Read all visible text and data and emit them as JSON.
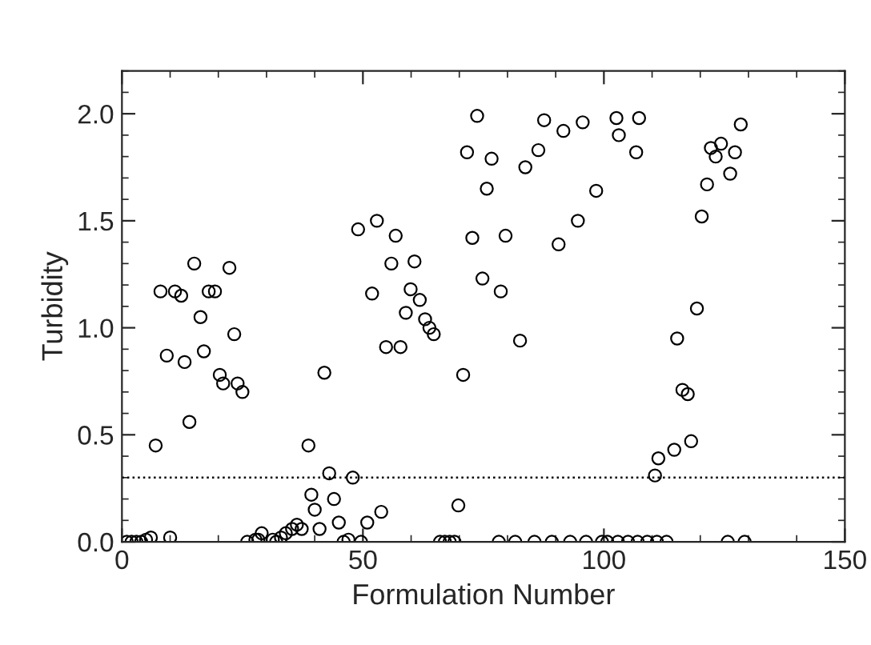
{
  "chart_data": {
    "type": "scatter",
    "xlabel": "Formulation Number",
    "ylabel": "Turbidity",
    "marker": "circle",
    "grid": false,
    "legend": false,
    "xlim": [
      0,
      150
    ],
    "xticks": [
      0,
      50,
      100,
      150
    ],
    "ylim": [
      0,
      2.2
    ],
    "yticks": [
      {
        "value": 0,
        "label": "0.0"
      },
      {
        "value": 0.5,
        "label": "0.5"
      },
      {
        "value": 1.0,
        "label": "1.0"
      },
      {
        "value": 1.5,
        "label": "1.5"
      },
      {
        "value": 2.0,
        "label": "2.0"
      }
    ],
    "ref_lines": [
      {
        "axis": "y",
        "value": 0.3,
        "label": null,
        "line_style": "dotted",
        "color": "#000000"
      }
    ],
    "series": [
      {
        "color": "#000000",
        "x": [
          1,
          2,
          3,
          4,
          5,
          6,
          7,
          8,
          9.3,
          10,
          11,
          12.3,
          13,
          14,
          15,
          16.3,
          17,
          18,
          19.3,
          20.3,
          21,
          22.3,
          23.3,
          24,
          25,
          26,
          27.7,
          28.3,
          29,
          31.3,
          32,
          33,
          34,
          35.3,
          36.3,
          37.3,
          38.7,
          39.3,
          40,
          41,
          42,
          43,
          44,
          45,
          46,
          47,
          47.9,
          49,
          49.6,
          50.9,
          51.9,
          52.9,
          53.8,
          54.8,
          55.9,
          56.8,
          57.8,
          58.9,
          59.9,
          60.7,
          61.8,
          62.9,
          63.8,
          64.7,
          66,
          67,
          68,
          69,
          69.8,
          70.8,
          71.6,
          72.7,
          73.7,
          74.8,
          75.7,
          76.7,
          78.2,
          78.6,
          79.6,
          81.6,
          82.6,
          83.7,
          85.6,
          86.4,
          87.6,
          89.2,
          90.6,
          91.6,
          93,
          94.6,
          95.6,
          96.3,
          98.4,
          99.6,
          100.7,
          102.6,
          102.9,
          103.1,
          105,
          106.7,
          107,
          107.3,
          109,
          110.6,
          111,
          111.3,
          113,
          114.6,
          115.2,
          116.3,
          117.4,
          118.1,
          119.3,
          120.3,
          121.4,
          122.2,
          123.2,
          124.3,
          125.7,
          126.2,
          127.2,
          128.4,
          129.2
        ],
        "values": [
          0,
          0,
          0,
          0,
          0.01,
          0.02,
          0.45,
          1.17,
          0.87,
          0.02,
          1.17,
          1.15,
          0.84,
          0.56,
          1.3,
          1.05,
          0.89,
          1.17,
          1.17,
          0.78,
          0.74,
          1.28,
          0.97,
          0.74,
          0.7,
          0,
          0.01,
          0.01,
          0.04,
          0.01,
          0,
          0.02,
          0.04,
          0.06,
          0.08,
          0.06,
          0.45,
          0.22,
          0.15,
          0.06,
          0.79,
          0.32,
          0.2,
          0.09,
          0,
          0.01,
          0.3,
          1.46,
          0,
          0.09,
          1.16,
          1.5,
          0.14,
          0.91,
          1.3,
          1.43,
          0.91,
          1.07,
          1.18,
          1.31,
          1.13,
          1.04,
          1.0,
          0.97,
          0,
          0,
          0,
          0,
          0.17,
          0.78,
          1.82,
          1.42,
          1.99,
          1.23,
          1.65,
          1.79,
          0,
          1.17,
          1.43,
          0,
          0.94,
          1.75,
          0,
          1.83,
          1.97,
          0,
          1.39,
          1.92,
          0,
          1.5,
          1.96,
          0,
          1.64,
          0,
          0,
          1.98,
          0,
          1.9,
          0,
          1.82,
          0,
          1.98,
          0,
          0.31,
          0,
          0.39,
          0,
          0.43,
          0.95,
          0.71,
          0.69,
          0.47,
          1.09,
          1.52,
          1.67,
          1.84,
          1.8,
          1.86,
          0,
          1.72,
          1.82,
          1.95,
          0
        ]
      }
    ]
  }
}
